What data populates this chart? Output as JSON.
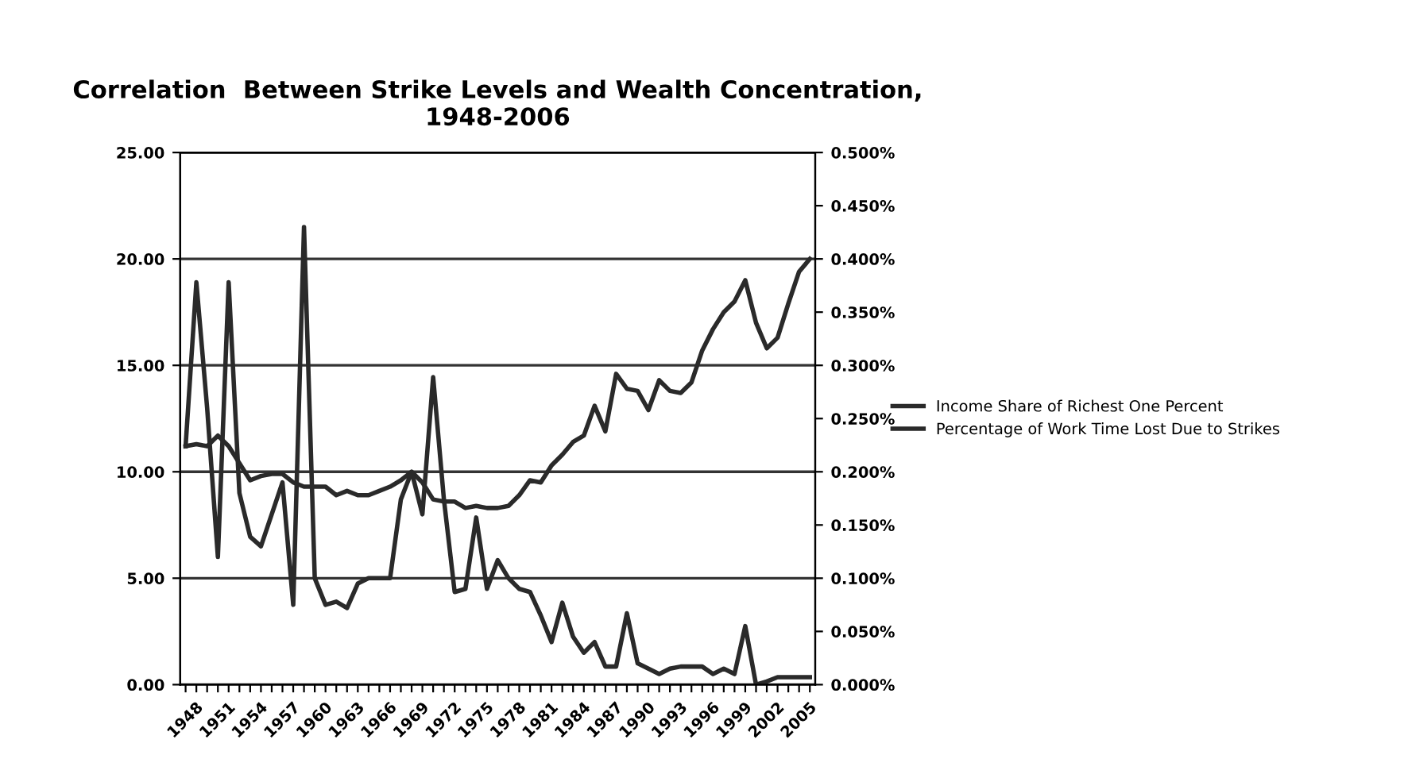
{
  "chart_data": {
    "type": "line",
    "title": "Correlation  Between Strike Levels and Wealth Concentration, 1948-2006",
    "categories": [
      "1948",
      null,
      null,
      "1951",
      null,
      null,
      "1954",
      null,
      null,
      "1957",
      null,
      null,
      "1960",
      null,
      null,
      "1963",
      null,
      null,
      "1966",
      null,
      null,
      "1969",
      null,
      null,
      "1972",
      null,
      null,
      "1975",
      null,
      null,
      "1978",
      null,
      null,
      "1981",
      null,
      null,
      "1984",
      null,
      null,
      "1987",
      null,
      null,
      "1990",
      null,
      null,
      "1993",
      null,
      null,
      "1996",
      null,
      null,
      "1999",
      null,
      null,
      "2002",
      null,
      null,
      "2005",
      null
    ],
    "series": [
      {
        "name": "Income Share of Richest One Percent",
        "color": "#2a2a2a",
        "values": [
          11.2,
          11.3,
          11.2,
          11.7,
          11.2,
          10.4,
          9.6,
          9.8,
          9.9,
          9.9,
          9.5,
          9.3,
          9.3,
          9.3,
          8.9,
          9.1,
          8.9,
          8.9,
          9.1,
          9.3,
          9.6,
          10.0,
          9.5,
          8.7,
          8.6,
          8.6,
          8.3,
          8.4,
          8.3,
          8.3,
          8.4,
          8.9,
          9.6,
          9.5,
          10.3,
          10.8,
          11.4,
          11.7,
          13.1,
          11.9,
          14.6,
          13.9,
          13.8,
          12.9,
          14.3,
          13.8,
          13.7,
          14.2,
          15.7,
          16.7,
          17.5,
          18.0,
          19.0,
          17.0,
          15.8,
          16.3,
          17.9,
          19.4,
          20.0
        ]
      },
      {
        "name": "Percentage of Work Time Lost Due to Strikes",
        "color": "#2a2a2a",
        "axis": "y2",
        "values": [
          0.224,
          0.378,
          0.26,
          0.12,
          0.378,
          0.18,
          0.139,
          0.13,
          0.16,
          0.19,
          0.075,
          0.43,
          0.1,
          0.075,
          0.078,
          0.072,
          0.095,
          0.1,
          0.1,
          0.1,
          0.174,
          0.2,
          0.16,
          0.289,
          0.174,
          0.087,
          0.09,
          0.157,
          0.09,
          0.117,
          0.1,
          0.09,
          0.087,
          0.065,
          0.04,
          0.077,
          0.045,
          0.03,
          0.04,
          0.017,
          0.017,
          0.067,
          0.02,
          0.015,
          0.01,
          0.015,
          0.017,
          0.017,
          0.017,
          0.01,
          0.015,
          0.01,
          0.055,
          0.0,
          0.003,
          0.007,
          0.007,
          0.007,
          0.007
        ]
      }
    ],
    "ylim": [
      0,
      25
    ],
    "yticks": [
      {
        "value": 0,
        "label": "0.00"
      },
      {
        "value": 5,
        "label": "5.00"
      },
      {
        "value": 10,
        "label": "10.00"
      },
      {
        "value": 15,
        "label": "15.00"
      },
      {
        "value": 20,
        "label": "20.00"
      },
      {
        "value": 25,
        "label": "25.00"
      }
    ],
    "y2lim": [
      0,
      0.5
    ],
    "y2ticks": [
      {
        "value": 0,
        "label": "0.000%"
      },
      {
        "value": 0.05,
        "label": "0.050%"
      },
      {
        "value": 0.1,
        "label": "0.100%"
      },
      {
        "value": 0.15,
        "label": "0.150%"
      },
      {
        "value": 0.2,
        "label": "0.200%"
      },
      {
        "value": 0.25,
        "label": "0.250%"
      },
      {
        "value": 0.3,
        "label": "0.300%"
      },
      {
        "value": 0.35,
        "label": "0.350%"
      },
      {
        "value": 0.4,
        "label": "0.400%"
      },
      {
        "value": 0.45,
        "label": "0.450%"
      },
      {
        "value": 0.5,
        "label": "0.500%"
      }
    ],
    "grid": "y",
    "legend": "right",
    "marker": "none",
    "line_style": "solid"
  }
}
